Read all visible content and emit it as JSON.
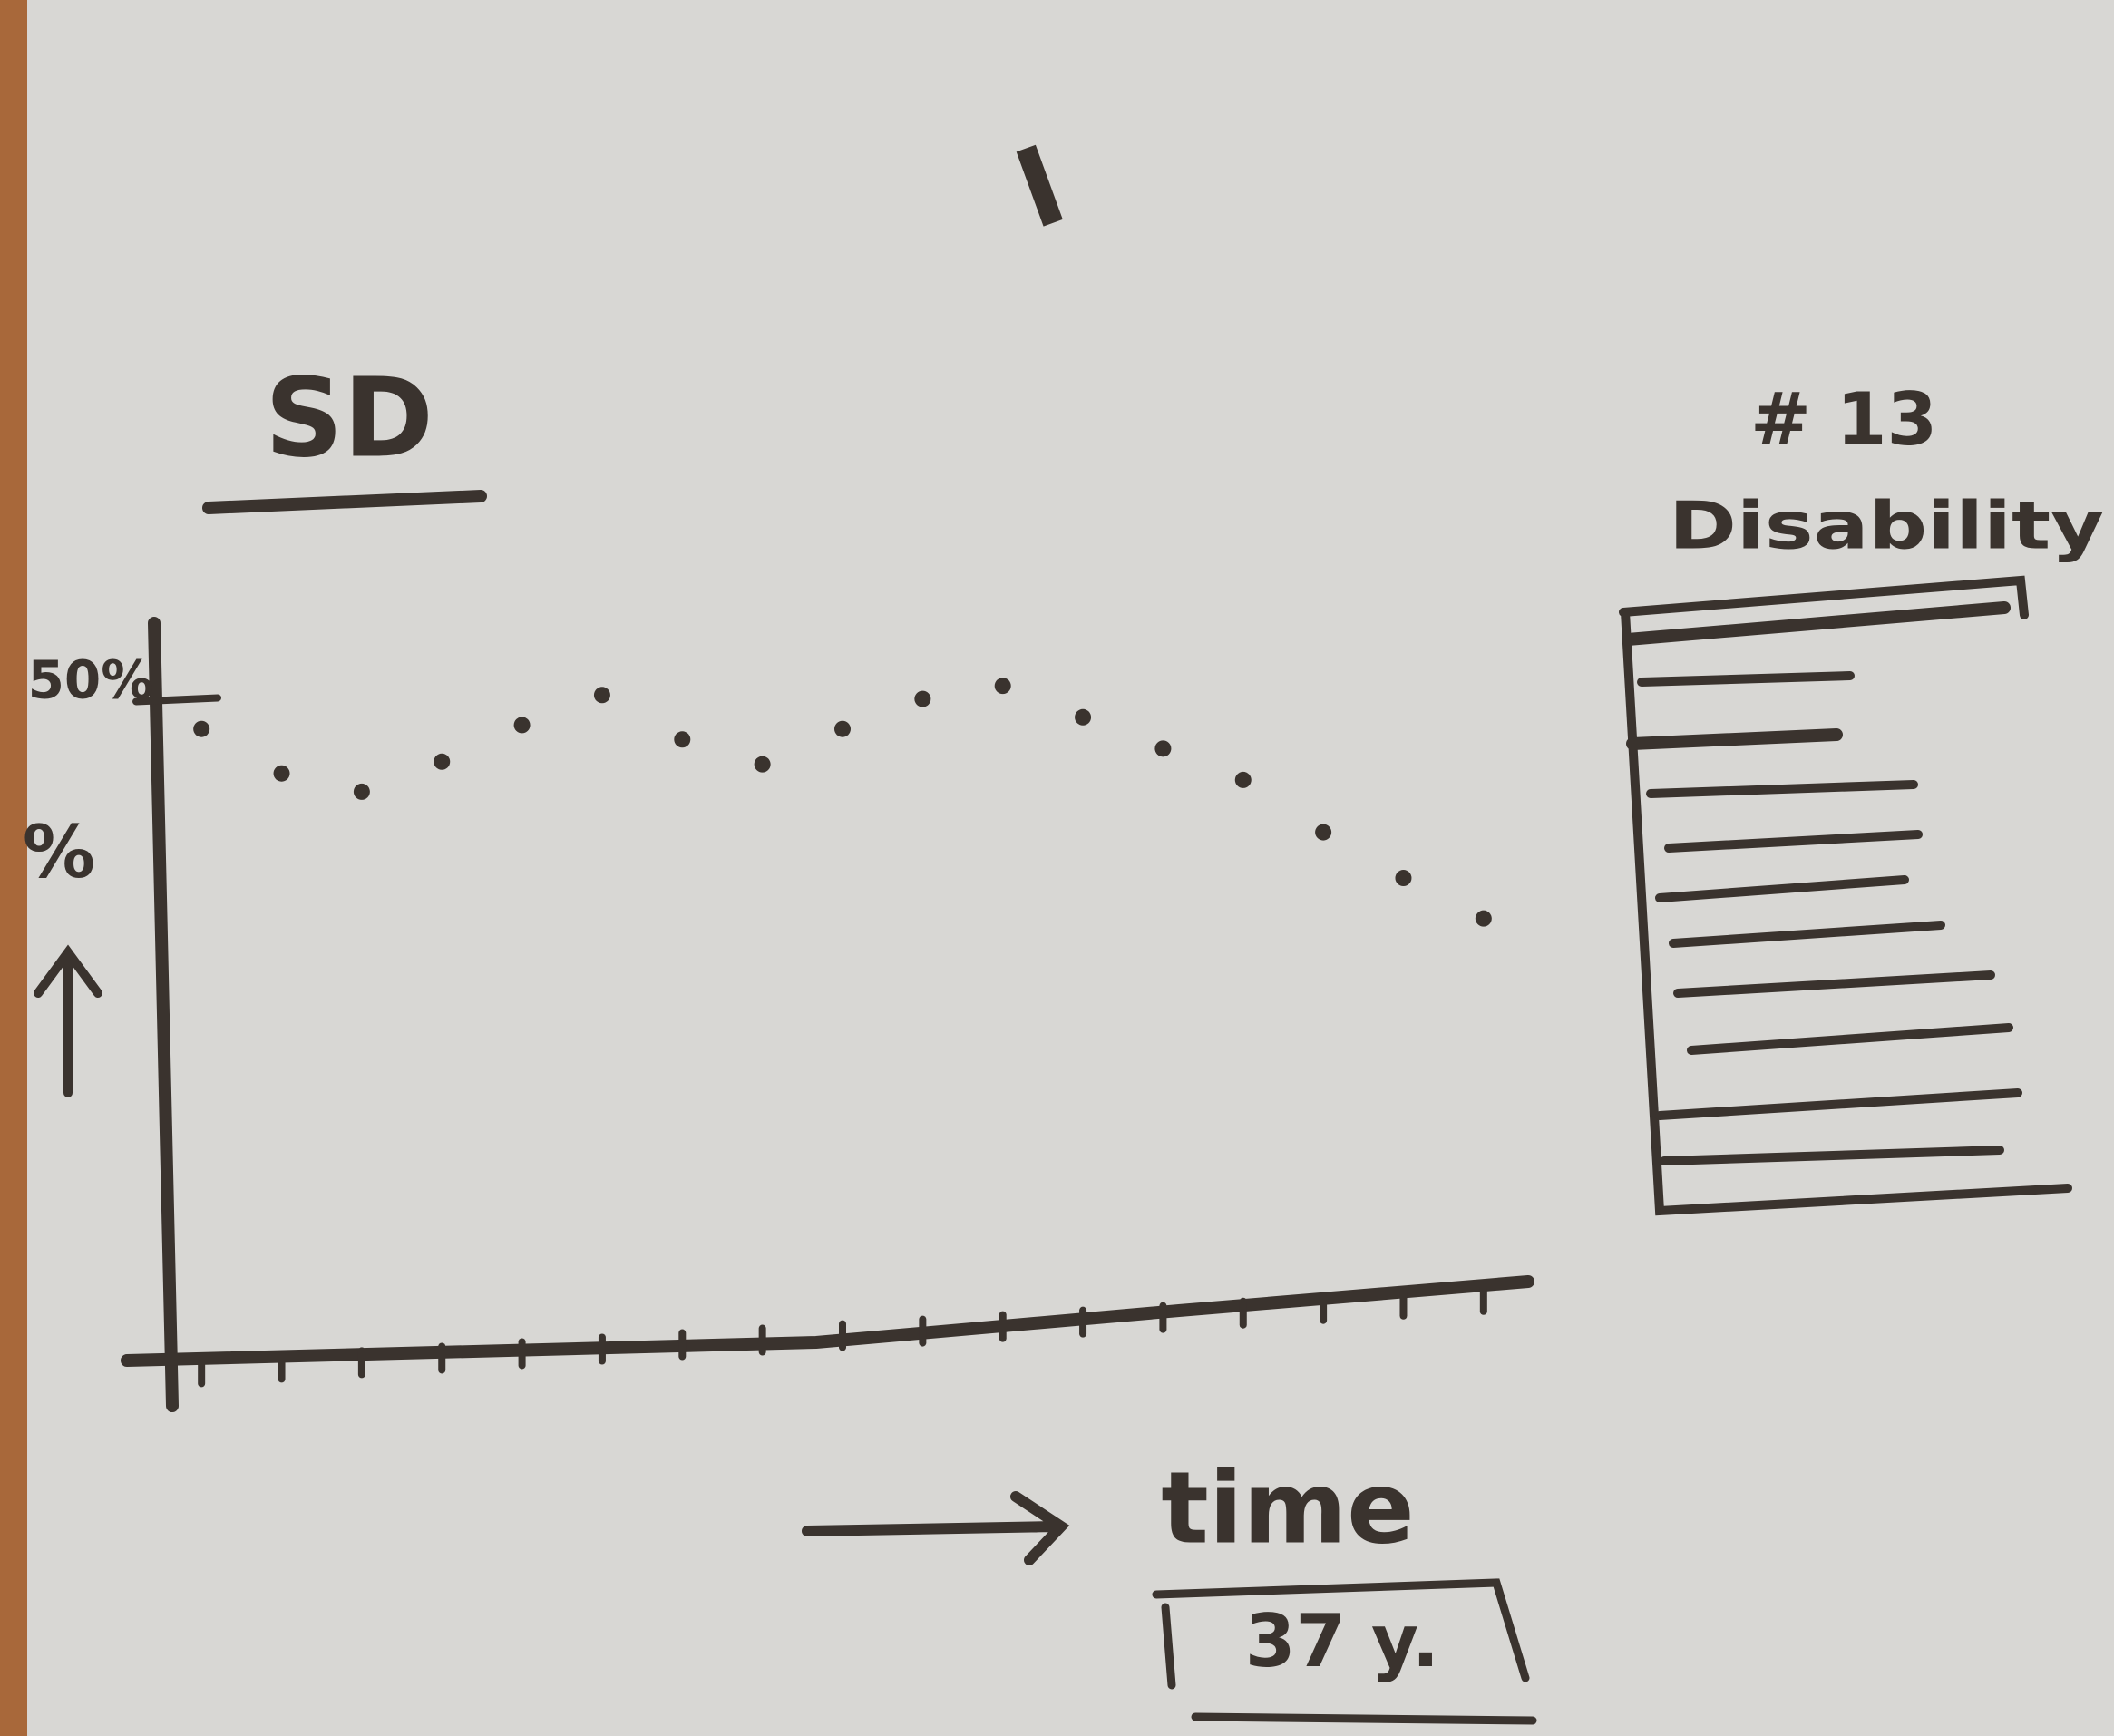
{
  "header": "I",
  "chart_data": {
    "type": "scatter",
    "title": "SD",
    "y_label": "%",
    "x_label": "time",
    "categories": [
      null,
      null,
      null,
      null,
      null,
      null,
      null,
      null,
      null,
      null,
      null,
      null,
      null,
      null,
      null,
      null,
      null
    ],
    "values": [
      47.9,
      44.5,
      43.1,
      45.4,
      48.2,
      50.5,
      47.1,
      45.2,
      47.9,
      50.2,
      51.2,
      48.8,
      46.4,
      44.0,
      40.0,
      36.5,
      33.4
    ],
    "color": "#3a332e",
    "ylim": [
      0,
      56
    ],
    "yticks": [
      {
        "value": 50,
        "label": "50%"
      }
    ]
  },
  "time_box": "37 y.",
  "side_panel": {
    "count": "# 13",
    "title": "Disability"
  }
}
